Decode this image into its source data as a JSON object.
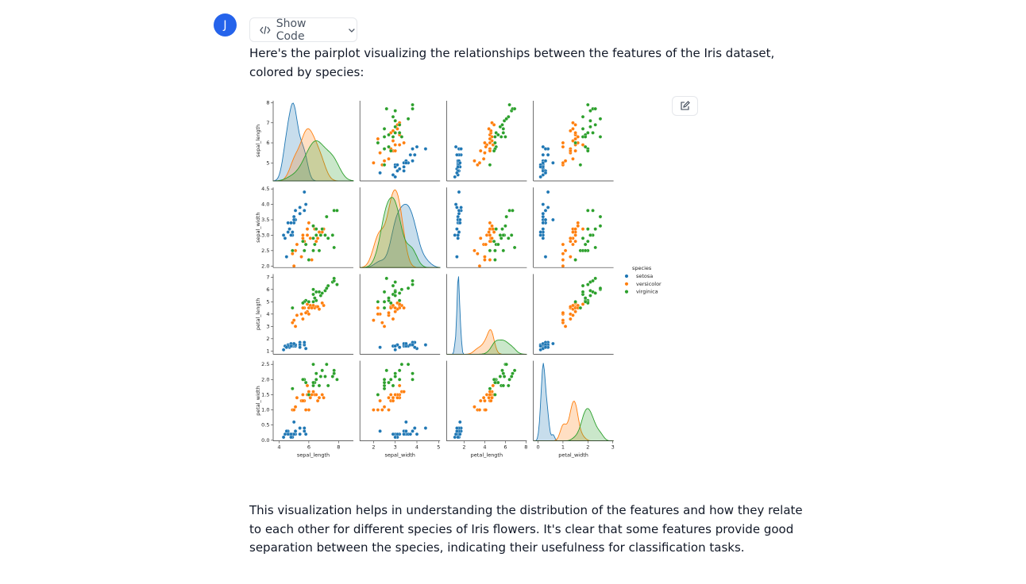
{
  "message": {
    "avatar": "J",
    "button": "Show Code",
    "intro": "Here's the pairplot visualizing the relationships between the features of the Iris dataset, colored by species:",
    "outro": "This visualization helps in understanding the distribution of the features and how they relate to each other for different species of Iris flowers. It's clear that some features provide good separation between the species, indicating their usefulness for classification tasks."
  },
  "chart_data": {
    "type": "pairplot",
    "legend_title": "species",
    "variables": [
      {
        "name": "sepal_length",
        "xlim": [
          3.6,
          9.0
        ],
        "xticks": [
          4,
          6,
          8
        ],
        "ylim": [
          4.1,
          8.1
        ],
        "yticks": [
          5,
          6,
          7,
          8
        ]
      },
      {
        "name": "sepal_width",
        "xlim": [
          1.37,
          5.07
        ],
        "xticks": [
          2,
          3,
          4,
          5
        ],
        "ylim": [
          1.95,
          4.55
        ],
        "yticks": [
          {
            "value": 2,
            "label": "2.0"
          },
          2.5,
          {
            "value": 3,
            "label": "3.0"
          },
          3.5,
          {
            "value": 4,
            "label": "4.0"
          },
          4.5
        ]
      },
      {
        "name": "petal_length",
        "xlim": [
          0.3,
          8.08
        ],
        "xticks": [
          2,
          4,
          6,
          8
        ],
        "ylim": [
          0.74,
          7.25
        ],
        "yticks": [
          1,
          2,
          3,
          4,
          5,
          6,
          7
        ]
      },
      {
        "name": "petal_width",
        "xlim": [
          -0.19,
          3.03
        ],
        "xticks": [
          0,
          1,
          2,
          3
        ],
        "ylim": [
          -0.02,
          2.62
        ],
        "yticks": [
          {
            "value": 0,
            "label": "0.0"
          },
          0.5,
          {
            "value": 1,
            "label": "1.0"
          },
          1.5,
          {
            "value": 2,
            "label": "2.0"
          },
          2.5
        ]
      }
    ],
    "series": [
      {
        "name": "setosa",
        "color": "#1f77b4",
        "values": [
          [
            5.1,
            3.5,
            1.4,
            0.2
          ],
          [
            4.9,
            3.0,
            1.4,
            0.2
          ],
          [
            4.7,
            3.2,
            1.3,
            0.2
          ],
          [
            4.6,
            3.1,
            1.5,
            0.2
          ],
          [
            5.0,
            3.6,
            1.4,
            0.2
          ],
          [
            5.4,
            3.9,
            1.7,
            0.4
          ],
          [
            4.6,
            3.4,
            1.4,
            0.3
          ],
          [
            5.0,
            3.4,
            1.5,
            0.2
          ],
          [
            4.4,
            2.9,
            1.4,
            0.2
          ],
          [
            4.9,
            3.1,
            1.5,
            0.1
          ],
          [
            5.4,
            3.7,
            1.5,
            0.2
          ],
          [
            4.8,
            3.4,
            1.6,
            0.2
          ],
          [
            4.8,
            3.0,
            1.4,
            0.1
          ],
          [
            4.3,
            3.0,
            1.1,
            0.1
          ],
          [
            5.8,
            4.0,
            1.2,
            0.2
          ],
          [
            5.7,
            4.4,
            1.5,
            0.4
          ],
          [
            5.4,
            3.9,
            1.3,
            0.4
          ],
          [
            5.1,
            3.5,
            1.4,
            0.3
          ],
          [
            5.7,
            3.8,
            1.7,
            0.3
          ],
          [
            5.1,
            3.8,
            1.5,
            0.3
          ],
          [
            4.5,
            2.3,
            1.3,
            0.3
          ],
          [
            5.0,
            3.5,
            1.6,
            0.6
          ]
        ]
      },
      {
        "name": "versicolor",
        "color": "#ff7f0e",
        "values": [
          [
            7.0,
            3.2,
            4.7,
            1.4
          ],
          [
            6.4,
            3.2,
            4.5,
            1.5
          ],
          [
            6.9,
            3.1,
            4.9,
            1.5
          ],
          [
            5.5,
            2.3,
            4.0,
            1.3
          ],
          [
            6.5,
            2.8,
            4.6,
            1.5
          ],
          [
            5.7,
            2.8,
            4.5,
            1.3
          ],
          [
            6.3,
            3.3,
            4.7,
            1.6
          ],
          [
            4.9,
            2.4,
            3.3,
            1.0
          ],
          [
            6.6,
            2.9,
            4.6,
            1.3
          ],
          [
            5.2,
            2.7,
            3.9,
            1.4
          ],
          [
            5.0,
            2.0,
            3.5,
            1.0
          ],
          [
            5.9,
            3.0,
            4.2,
            1.5
          ],
          [
            6.0,
            2.2,
            4.0,
            1.0
          ],
          [
            6.1,
            2.9,
            4.7,
            1.4
          ],
          [
            5.6,
            2.9,
            3.6,
            1.3
          ],
          [
            6.7,
            3.1,
            4.4,
            1.4
          ],
          [
            5.6,
            3.0,
            4.5,
            1.5
          ],
          [
            5.8,
            2.7,
            4.1,
            1.0
          ],
          [
            6.2,
            2.2,
            4.5,
            1.5
          ],
          [
            5.9,
            3.2,
            4.8,
            1.8
          ],
          [
            6.0,
            3.4,
            4.5,
            1.6
          ],
          [
            5.1,
            2.5,
            3.0,
            1.1
          ]
        ]
      },
      {
        "name": "virginica",
        "color": "#2ca02c",
        "values": [
          [
            6.3,
            3.3,
            6.0,
            2.5
          ],
          [
            5.8,
            2.7,
            5.1,
            1.9
          ],
          [
            7.1,
            3.0,
            5.9,
            2.1
          ],
          [
            6.3,
            2.9,
            5.6,
            1.8
          ],
          [
            6.5,
            3.0,
            5.8,
            2.2
          ],
          [
            7.6,
            3.0,
            6.6,
            2.1
          ],
          [
            4.9,
            2.5,
            4.5,
            1.7
          ],
          [
            7.3,
            2.9,
            6.3,
            1.8
          ],
          [
            6.7,
            2.5,
            5.8,
            1.8
          ],
          [
            7.2,
            3.6,
            6.1,
            2.5
          ],
          [
            6.5,
            3.2,
            5.1,
            2.0
          ],
          [
            6.4,
            2.7,
            5.3,
            1.9
          ],
          [
            6.8,
            3.0,
            5.5,
            2.1
          ],
          [
            5.7,
            2.5,
            5.0,
            2.0
          ],
          [
            7.7,
            3.8,
            6.7,
            2.2
          ],
          [
            7.7,
            2.6,
            6.9,
            2.3
          ],
          [
            6.0,
            2.2,
            5.0,
            1.5
          ],
          [
            6.9,
            3.2,
            5.7,
            2.3
          ],
          [
            5.6,
            2.8,
            4.9,
            2.0
          ],
          [
            7.9,
            3.8,
            6.4,
            2.0
          ],
          [
            6.3,
            2.5,
            5.0,
            1.9
          ]
        ]
      }
    ]
  }
}
